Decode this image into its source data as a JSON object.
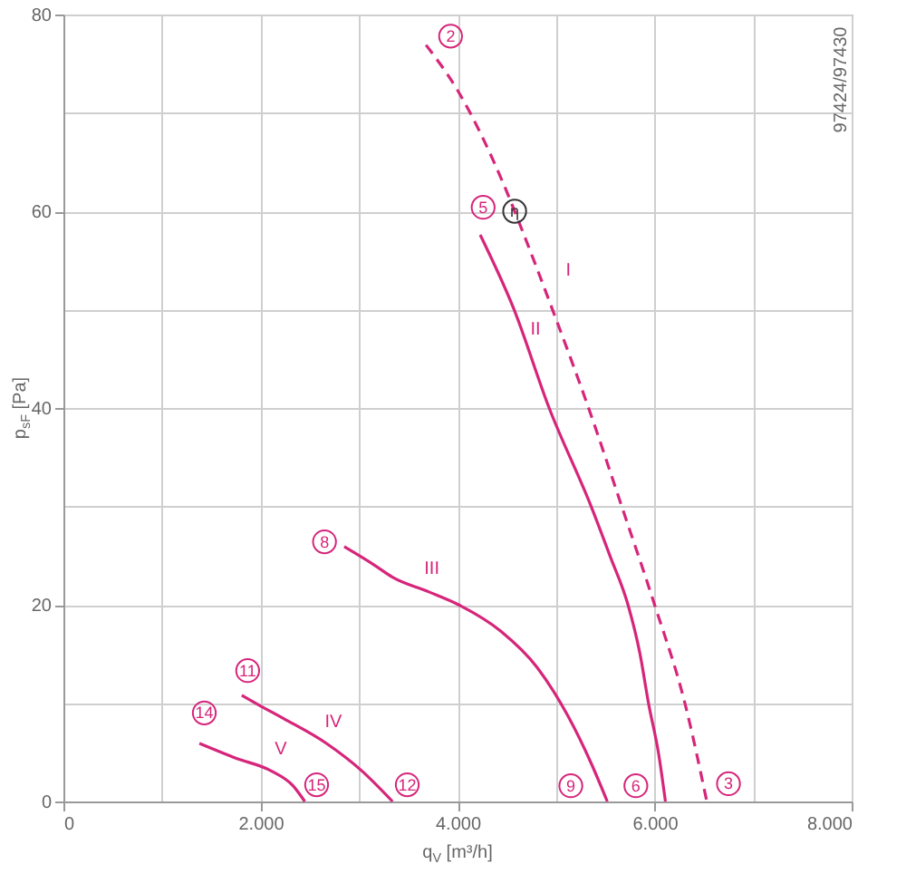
{
  "chart_data": {
    "type": "line",
    "xlabel": "q$_{V}$ [m³/h]",
    "ylabel": "p$_{sF}$ [Pa]",
    "xlim": [
      0,
      8000
    ],
    "ylim": [
      0,
      80
    ],
    "xticks": [
      0,
      {
        "value": 1000,
        "label": null
      },
      {
        "value": 2000,
        "label": "2.000"
      },
      {
        "value": 3000,
        "label": null
      },
      {
        "value": 4000,
        "label": "4.000"
      },
      {
        "value": 5000,
        "label": null
      },
      {
        "value": 6000,
        "label": "6.000"
      },
      {
        "value": 7000,
        "label": null
      },
      {
        "value": 8000,
        "label": "8.000"
      }
    ],
    "yticks": [
      0,
      {
        "value": 10,
        "label": null
      },
      20,
      {
        "value": 30,
        "label": null
      },
      40,
      {
        "value": 50,
        "label": null
      },
      60,
      {
        "value": 70,
        "label": null
      },
      80
    ],
    "grid": true,
    "series": [
      {
        "name": "I",
        "color": "#d6257a",
        "line_style": "dashed",
        "x": [
          3680,
          4000,
          4470,
          4690,
          4960,
          5330,
          5670,
          6000,
          6310,
          6530
        ],
        "values": [
          76.9,
          72.3,
          62.7,
          57.2,
          50.1,
          40.0,
          29.9,
          20.0,
          9.9,
          0
        ]
      },
      {
        "name": "II",
        "color": "#d6257a",
        "line_style": "solid",
        "x": [
          4230,
          4570,
          4930,
          5360,
          5550,
          5730,
          5850,
          5940,
          6040,
          6110
        ],
        "values": [
          57.6,
          50.1,
          40.0,
          29.9,
          24.9,
          20.0,
          15.1,
          9.9,
          4.9,
          0
        ]
      },
      {
        "name": "III",
        "color": "#d6257a",
        "line_style": "solid",
        "x": [
          2850,
          3160,
          3340,
          3710,
          4010,
          4440,
          4810,
          5120,
          5360,
          5520
        ],
        "values": [
          25.9,
          24.0,
          22.8,
          21.3,
          20.0,
          17.3,
          13.6,
          8.7,
          3.8,
          0
        ]
      },
      {
        "name": "IV",
        "color": "#d6257a",
        "line_style": "solid",
        "x": [
          1810,
          2020,
          2240,
          2670,
          3030,
          3340
        ],
        "values": [
          10.8,
          9.6,
          8.4,
          5.9,
          3.1,
          0
        ]
      },
      {
        "name": "V",
        "color": "#d6257a",
        "line_style": "solid",
        "x": [
          1380,
          1750,
          2110,
          2330,
          2450
        ],
        "values": [
          5.9,
          4.4,
          3.1,
          1.6,
          0
        ]
      }
    ],
    "annotations": [
      "97424/97430",
      {
        "text": "2",
        "x": 3930,
        "y": 77.8
      },
      {
        "text": "5",
        "x": 4260,
        "y": 60.4
      },
      {
        "text": "η",
        "x": 4580,
        "y": 60.0
      },
      {
        "text": "8",
        "x": 2650,
        "y": 26.4
      },
      {
        "text": "11",
        "x": 1870,
        "y": 13.3
      },
      {
        "text": "14",
        "x": 1430,
        "y": 9.0
      },
      {
        "text": "15",
        "x": 2570,
        "y": 1.7
      },
      {
        "text": "12",
        "x": 3490,
        "y": 1.7
      },
      {
        "text": "9",
        "x": 5150,
        "y": 1.6
      },
      {
        "text": "6",
        "x": 5810,
        "y": 1.6
      },
      {
        "text": "3",
        "x": 6750,
        "y": 1.8
      }
    ]
  }
}
